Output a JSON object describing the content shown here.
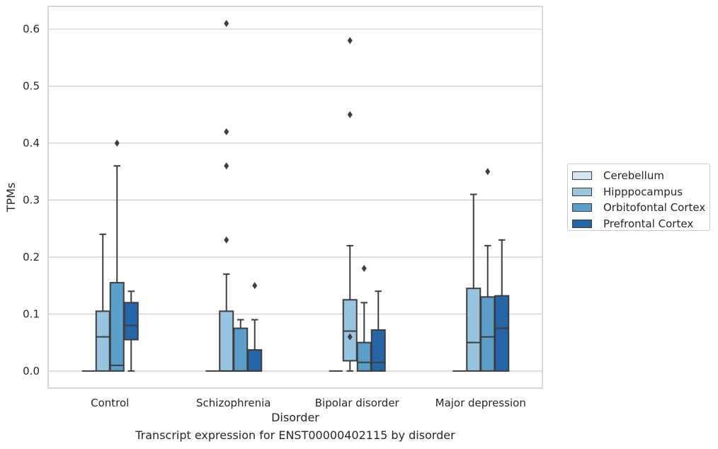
{
  "chart_data": {
    "type": "box",
    "title": "",
    "xlabel": "Disorder",
    "ylabel": "TPMs",
    "caption": "Transcript expression for ENST00000402115 by disorder",
    "ylim": [
      -0.03,
      0.64
    ],
    "yticks": [
      0.0,
      0.1,
      0.2,
      0.3,
      0.4,
      0.5,
      0.6
    ],
    "ytick_labels": [
      "0.0",
      "0.1",
      "0.2",
      "0.3",
      "0.4",
      "0.5",
      "0.6"
    ],
    "grid": "horizontal",
    "legend_position": "right",
    "categories": [
      "Control",
      "Schizophrenia",
      "Bipolar disorder",
      "Major depression"
    ],
    "series": [
      {
        "name": "Cerebellum",
        "color": "#d4e5f4",
        "boxes": [
          {
            "min": 0,
            "q1": 0,
            "median": 0,
            "q3": 0,
            "max": 0,
            "outliers": []
          },
          {
            "min": 0,
            "q1": 0,
            "median": 0,
            "q3": 0,
            "max": 0,
            "outliers": []
          },
          {
            "min": 0,
            "q1": 0,
            "median": 0,
            "q3": 0,
            "max": 0,
            "outliers": []
          },
          {
            "min": 0,
            "q1": 0,
            "median": 0,
            "q3": 0,
            "max": 0,
            "outliers": []
          }
        ]
      },
      {
        "name": "Hipppocampus",
        "color": "#99c4e0",
        "boxes": [
          {
            "min": 0,
            "q1": 0,
            "median": 0.06,
            "q3": 0.105,
            "max": 0.24,
            "outliers": []
          },
          {
            "min": 0,
            "q1": 0,
            "median": 0,
            "q3": 0.105,
            "max": 0.17,
            "outliers": [
              0.23,
              0.36,
              0.42,
              0.61
            ]
          },
          {
            "min": 0,
            "q1": 0.018,
            "median": 0.07,
            "q3": 0.125,
            "max": 0.22,
            "outliers": [
              0.06,
              0.45,
              0.58
            ]
          },
          {
            "min": 0,
            "q1": 0,
            "median": 0.05,
            "q3": 0.145,
            "max": 0.31,
            "outliers": []
          }
        ]
      },
      {
        "name": "Orbitofontal Cortex",
        "color": "#5a9ec9",
        "boxes": [
          {
            "min": 0,
            "q1": 0,
            "median": 0.01,
            "q3": 0.155,
            "max": 0.36,
            "outliers": [
              0.4
            ]
          },
          {
            "min": 0,
            "q1": 0,
            "median": 0,
            "q3": 0.075,
            "max": 0.09,
            "outliers": []
          },
          {
            "min": 0,
            "q1": 0,
            "median": 0.015,
            "q3": 0.05,
            "max": 0.12,
            "outliers": [
              0.18
            ]
          },
          {
            "min": 0,
            "q1": 0,
            "median": 0.06,
            "q3": 0.13,
            "max": 0.22,
            "outliers": [
              0.35
            ]
          }
        ]
      },
      {
        "name": "Prefrontal Cortex",
        "color": "#2566a8",
        "boxes": [
          {
            "min": 0,
            "q1": 0.055,
            "median": 0.08,
            "q3": 0.12,
            "max": 0.14,
            "outliers": []
          },
          {
            "min": 0,
            "q1": 0,
            "median": 0,
            "q3": 0.037,
            "max": 0.09,
            "outliers": [
              0.15
            ]
          },
          {
            "min": 0,
            "q1": 0,
            "median": 0.015,
            "q3": 0.072,
            "max": 0.14,
            "outliers": []
          },
          {
            "min": 0,
            "q1": 0,
            "median": 0.075,
            "q3": 0.132,
            "max": 0.23,
            "outliers": []
          }
        ]
      }
    ]
  }
}
